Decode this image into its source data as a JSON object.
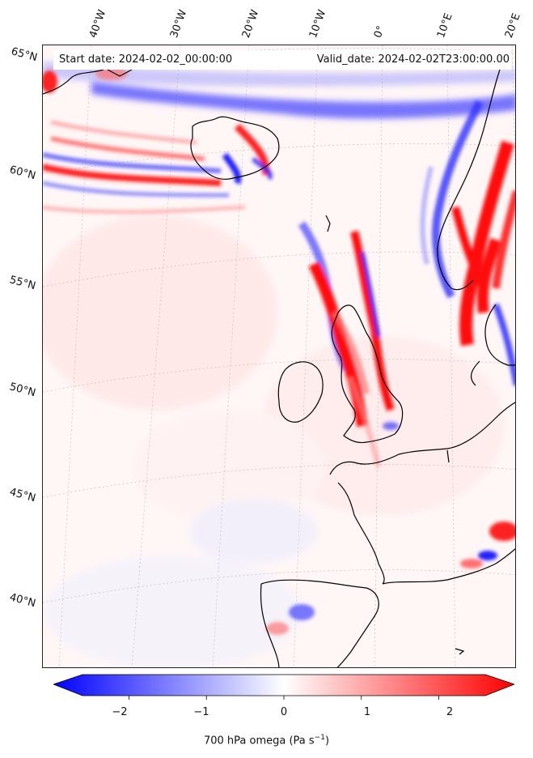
{
  "header": {
    "start_date": "Start date: 2024-02-02_00:00:00",
    "valid_date": "Valid_date: 2024-02-02T23:00:00.00"
  },
  "latitude_labels": [
    "65°N",
    "60°N",
    "55°N",
    "50°N",
    "45°N",
    "40°N"
  ],
  "longitude_labels": [
    "40°W",
    "30°W",
    "20°W",
    "10°W",
    "0°",
    "10°E",
    "20°E"
  ],
  "colorbar": {
    "ticks": [
      "−2",
      "−1",
      "0",
      "1",
      "2"
    ],
    "label": "700 hPa omega (Pa s",
    "label_exp": "−1",
    "label_close": ")",
    "min": -2.6,
    "max": 2.6,
    "color_low": "#0000ff",
    "color_mid": "#ffffff",
    "color_high": "#ff0000"
  },
  "colors": {
    "ascent_blue": "#1010ff",
    "descent_red": "#ff1010",
    "coast": "#000000",
    "graticule": "#b0b0b0"
  }
}
